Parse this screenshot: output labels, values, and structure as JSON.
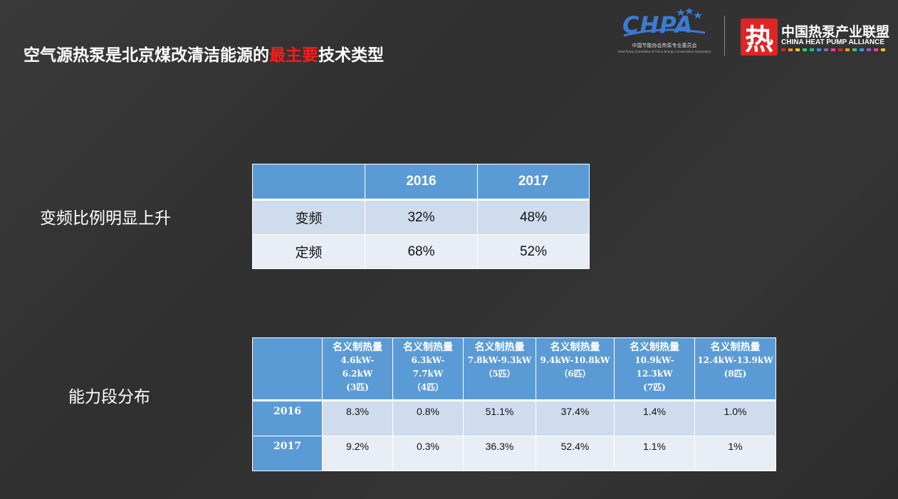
{
  "title": {
    "part1": "空气源热泵是北京煤改清洁能源的",
    "highlight": "最主要",
    "part2": "技术类型",
    "highlight_color": "#ff1a1a"
  },
  "logos": {
    "chpa": {
      "name": "CHPA",
      "subtitle_cn": "中国节能协会热泵专业委员会",
      "subtitle_en": "Heat Pump Committee of China Energy Conservation Association"
    },
    "alliance": {
      "icon_char": "热",
      "name_cn": "中国热泵产业联盟",
      "name_en": "CHINA HEAT PUMP ALLIANCE"
    }
  },
  "section1": {
    "label": "变频比例明显上升",
    "table": {
      "headers": [
        "",
        "2016",
        "2017"
      ],
      "rows": [
        [
          "变频",
          "32%",
          "48%"
        ],
        [
          "定频",
          "68%",
          "52%"
        ]
      ]
    }
  },
  "section2": {
    "label": "能力段分布",
    "table": {
      "headers": [
        {
          "line1": "",
          "line2": "",
          "line3": "",
          "line4": ""
        },
        {
          "line1": "名义制热量",
          "line2": "4.6kW-",
          "line3": "6.2kW",
          "line4": "(3匹)"
        },
        {
          "line1": "名义制热量",
          "line2": "6.3kW-",
          "line3": "7.7kW",
          "line4": "（4匹）"
        },
        {
          "line1": "名义制热量",
          "line2": "7.8kW-9.3kW",
          "line3": "（5匹）",
          "line4": ""
        },
        {
          "line1": "名义制热量",
          "line2": "9.4kW-10.8kW",
          "line3": "（6匹）",
          "line4": ""
        },
        {
          "line1": "名义制热量",
          "line2": "10.9kW-",
          "line3": "12.3kW",
          "line4": "(7匹)"
        },
        {
          "line1": "名义制热量",
          "line2": "12.4kW-13.9kW",
          "line3": "(8匹)",
          "line4": ""
        }
      ],
      "rows": [
        [
          "2016",
          "8.3%",
          "0.8%",
          "51.1%",
          "37.4%",
          "1.4%",
          "1.0%"
        ],
        [
          "2017",
          "9.2%",
          "0.3%",
          "36.3%",
          "52.4%",
          "1.1%",
          "1%"
        ]
      ]
    }
  },
  "colors": {
    "header_blue": "#5b9bd5",
    "row_light": "#cfdcee",
    "row_lighter": "#e8edf6"
  }
}
